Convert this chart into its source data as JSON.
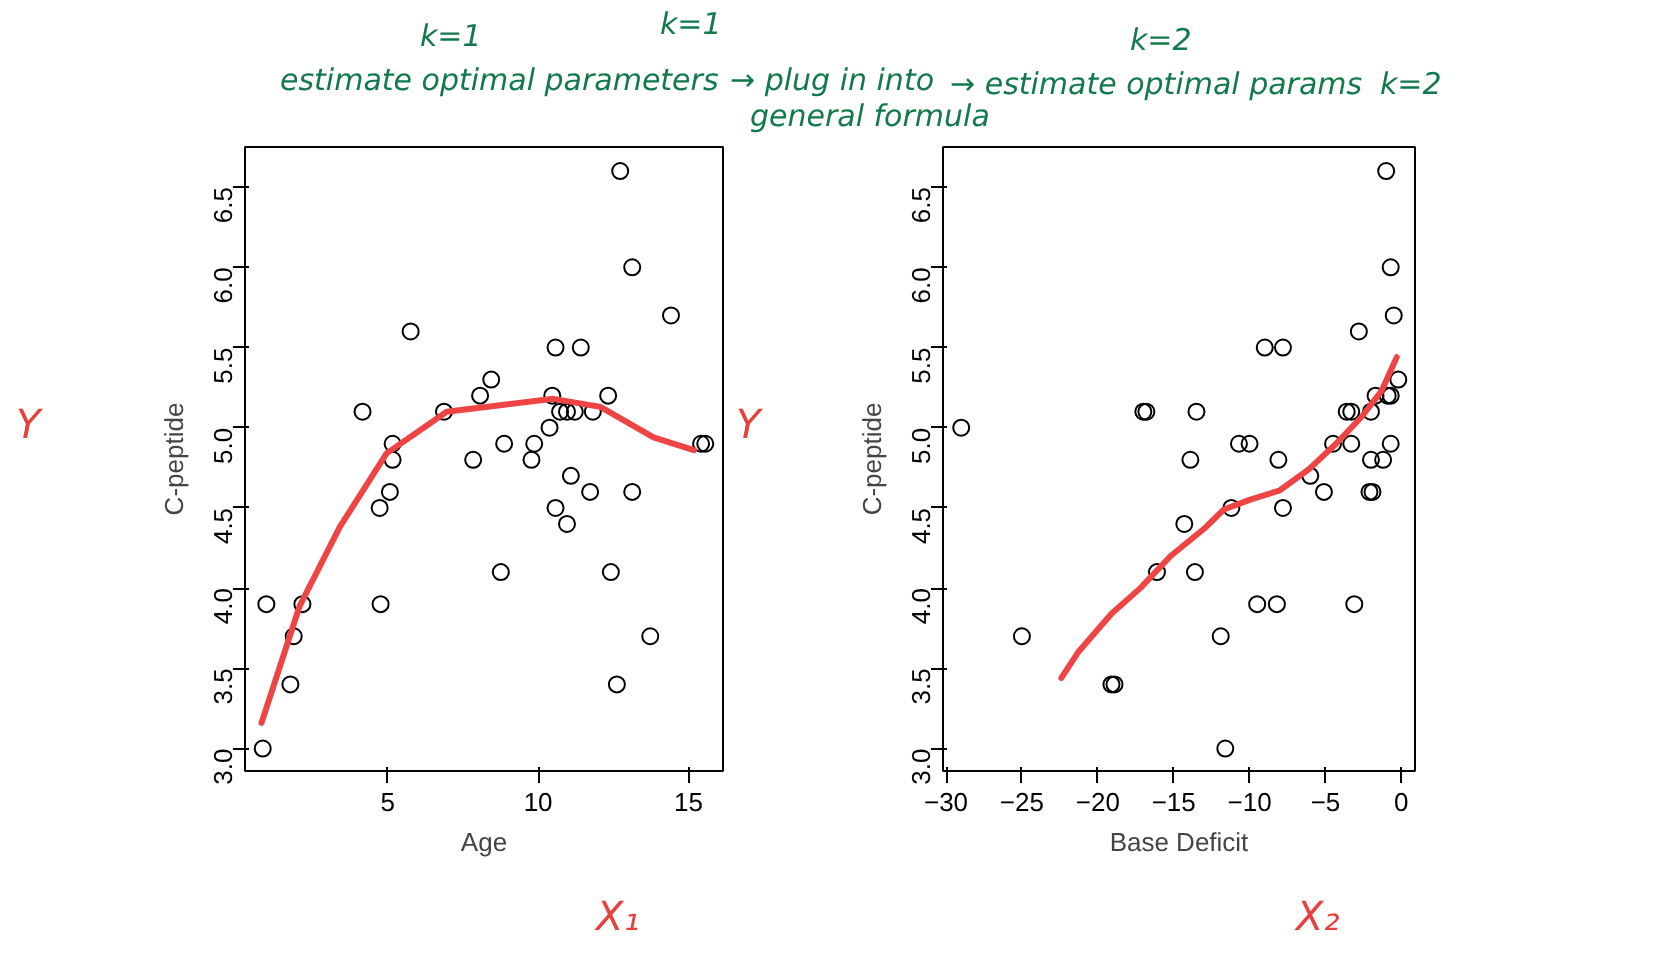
{
  "chart_data": [
    {
      "type": "scatter",
      "xlabel": "Age",
      "ylabel": "C-peptide",
      "xlim": [
        0.25,
        16.15
      ],
      "ylim": [
        2.86,
        6.75
      ],
      "xticks": [
        5,
        10,
        15
      ],
      "yticks": [
        {
          "value": 3,
          "label": "3.0"
        },
        3.5,
        {
          "value": 4,
          "label": "4.0"
        },
        4.5,
        {
          "value": 5,
          "label": "5.0"
        },
        5.5,
        {
          "value": 6,
          "label": "6.0"
        },
        6.5
      ],
      "grid": false,
      "annotations": [
        "k=1",
        "estimate optimal parameters",
        "k=1",
        "→ plug in into",
        "general formula",
        "Y",
        "X₁"
      ],
      "series": [
        {
          "marker": "circle",
          "color": "#000000",
          "x": [
            0.84,
            0.96,
            1.87,
            2.16,
            1.76,
            4.16,
            4.73,
            4.76,
            5.07,
            5.16,
            5.16,
            5.76,
            6.87,
            7.84,
            8.07,
            8.44,
            8.76,
            8.87,
            9.78,
            9.87,
            10.38,
            10.47,
            10.58,
            10.58,
            10.73,
            10.96,
            11.09,
            10.96,
            11.22,
            11.42,
            11.73,
            11.82,
            12.33,
            12.42,
            12.62,
            12.73,
            13.13,
            13.13,
            13.73,
            14.42,
            15.42,
            15.56
          ],
          "values": [
            3.0,
            3.9,
            3.7,
            3.9,
            3.4,
            5.1,
            4.5,
            3.9,
            4.6,
            4.8,
            4.9,
            5.6,
            5.1,
            4.8,
            5.2,
            5.3,
            4.1,
            4.9,
            4.8,
            4.9,
            5.0,
            5.2,
            5.5,
            4.5,
            5.1,
            5.1,
            4.7,
            4.4,
            5.1,
            5.5,
            4.6,
            5.1,
            5.2,
            4.1,
            3.4,
            6.6,
            6.0,
            4.6,
            3.7,
            5.7,
            4.9,
            4.9
          ]
        },
        {
          "type": "line",
          "marker": "none",
          "color": "#ee4444",
          "x": [
            0.8,
            2.07,
            3.4,
            4.96,
            6.96,
            8.73,
            10.51,
            12.07,
            13.84,
            15.18
          ],
          "values": [
            3.16,
            3.89,
            4.38,
            4.84,
            5.1,
            5.14,
            5.18,
            5.13,
            4.94,
            4.86
          ]
        }
      ]
    },
    {
      "type": "scatter",
      "xlabel": "Base Deficit",
      "ylabel": "C-peptide",
      "xlim": [
        -30.2,
        0.9
      ],
      "ylim": [
        2.86,
        6.75
      ],
      "xticks": [
        {
          "value": -30,
          "label": "−30"
        },
        {
          "value": -25,
          "label": "−25"
        },
        {
          "value": -20,
          "label": "−20"
        },
        {
          "value": -15,
          "label": "−15"
        },
        {
          "value": -10,
          "label": "−10"
        },
        {
          "value": -5,
          "label": "−5"
        },
        0
      ],
      "yticks": [
        {
          "value": 3,
          "label": "3.0"
        },
        3.5,
        {
          "value": 4,
          "label": "4.0"
        },
        4.5,
        {
          "value": 5,
          "label": "5.0"
        },
        5.5,
        {
          "value": 6,
          "label": "6.0"
        },
        6.5
      ],
      "grid": false,
      "annotations": [
        "k=2",
        "→ estimate optimal params",
        "k=2",
        "Y",
        "X₂"
      ],
      "series": [
        {
          "marker": "circle",
          "color": "#000000",
          "x": [
            -29.0,
            -25.0,
            -19.1,
            -18.9,
            -17.0,
            -16.8,
            -16.1,
            -14.3,
            -13.9,
            -13.6,
            -13.5,
            -11.9,
            -11.6,
            -11.2,
            -10.7,
            -10.0,
            -9.5,
            -9.0,
            -8.2,
            -8.1,
            -7.8,
            -7.8,
            -6.0,
            -5.1,
            -4.5,
            -3.6,
            -3.3,
            -3.3,
            -3.1,
            -2.8,
            -2.0,
            -2.0,
            -2.1,
            -1.9,
            -1.7,
            -1.2,
            -1.0,
            -0.9,
            -0.7,
            -0.7,
            -0.7,
            -0.5,
            -0.2
          ],
          "values": [
            5.0,
            3.7,
            3.4,
            3.4,
            5.1,
            5.1,
            4.1,
            4.4,
            4.8,
            4.1,
            5.1,
            3.7,
            3.0,
            4.5,
            4.9,
            4.9,
            3.9,
            5.5,
            3.9,
            4.8,
            5.5,
            4.5,
            4.7,
            4.6,
            4.9,
            5.1,
            5.1,
            4.9,
            3.9,
            5.6,
            5.1,
            4.8,
            4.6,
            4.6,
            5.2,
            4.8,
            6.6,
            5.2,
            5.2,
            6.0,
            4.9,
            5.7,
            5.3
          ]
        },
        {
          "type": "line",
          "marker": "none",
          "color": "#ee4444",
          "x": [
            -22.4,
            -21.3,
            -19.1,
            -17.2,
            -15.2,
            -13.0,
            -11.7,
            -10.0,
            -8.0,
            -6.1,
            -4.3,
            -2.6,
            -1.3,
            -0.3
          ],
          "values": [
            3.44,
            3.6,
            3.84,
            4.0,
            4.2,
            4.37,
            4.49,
            4.55,
            4.61,
            4.74,
            4.9,
            5.07,
            5.23,
            5.44
          ]
        }
      ]
    }
  ]
}
